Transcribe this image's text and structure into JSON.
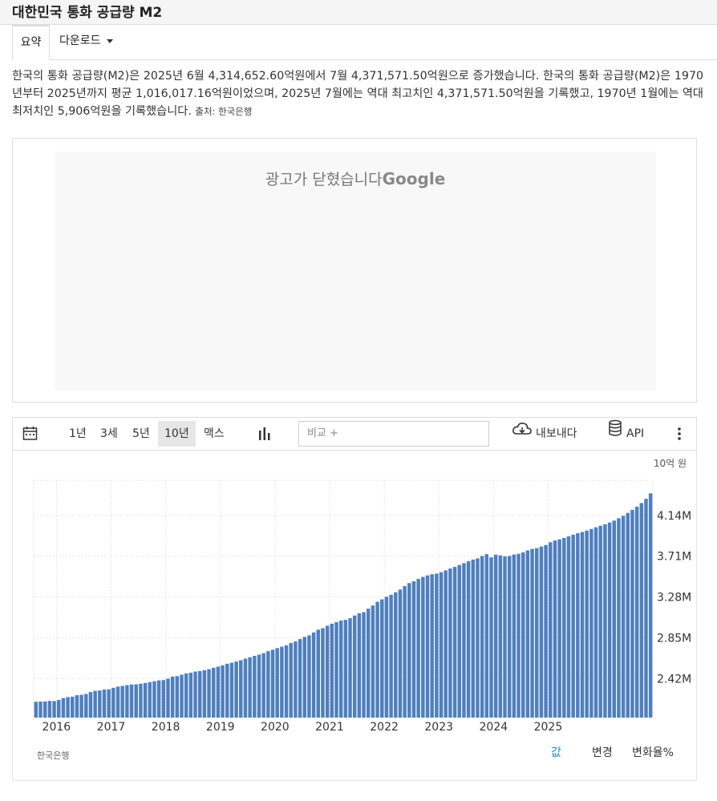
{
  "page": {
    "title": "대한민국 통화 공급량 M2",
    "tabs": [
      {
        "label": "요약"
      },
      {
        "label": "다운로드"
      }
    ],
    "description": "한국의 통화 공급량(M2)은 2025년 6월 4,314,652.60억원에서 7월 4,371,571.50억원으로 증가했습니다. 한국의 통화 공급량(M2)은 1970년부터 2025년까지 평균 1,016,017.16억원이었으며, 2025년 7월에는 역대 최고치인 4,371,571.50억원을 기록했고, 1970년 1월에는 역대 최저치인 5,906억원을 기록했습니다.",
    "source_prefix": "출처:",
    "source_name": "한국은행"
  },
  "ad": {
    "text": "광고가 닫혔습니다",
    "brand": "Google"
  },
  "toolbar": {
    "periods": [
      "1년",
      "3세",
      "5년",
      "10년",
      "맥스"
    ],
    "selected_period": "10년",
    "compare_placeholder": "비교 +",
    "export_label": "내보내다",
    "api_label": "API",
    "icons": [
      "calendar-icon",
      "bar-chart-icon",
      "cloud-download-icon",
      "database-icon",
      "more-vert-icon"
    ]
  },
  "chart_footer": {
    "source": "한국은행",
    "modes": [
      "값",
      "변경",
      "변화율%"
    ],
    "selected_mode": "값",
    "selected_color": "#1b8ed1"
  },
  "chart_data": {
    "type": "bar",
    "unit_label": "10억 원",
    "bar_color": "#4f7fbe",
    "grid": true,
    "x_tick_labels": [
      "2016",
      "2017",
      "2018",
      "2019",
      "2020",
      "2021",
      "2022",
      "2023",
      "2024",
      "2025"
    ],
    "y_tick_labels": [
      "2.42M",
      "2.85M",
      "3.28M",
      "3.71M",
      "4.14M"
    ],
    "y_ticks": [
      2420,
      2850,
      3280,
      3710,
      4140
    ],
    "ylim": [
      2010,
      4510
    ],
    "xlim": [
      "2015-08",
      "2025-07"
    ],
    "start_month": "2015-08",
    "values": [
      2177,
      2179,
      2180,
      2186,
      2184,
      2196,
      2216,
      2226,
      2230,
      2246,
      2250,
      2259,
      2279,
      2292,
      2296,
      2306,
      2308,
      2324,
      2337,
      2344,
      2352,
      2359,
      2360,
      2367,
      2375,
      2384,
      2393,
      2402,
      2405,
      2420,
      2442,
      2447,
      2462,
      2476,
      2483,
      2495,
      2500,
      2510,
      2520,
      2535,
      2547,
      2560,
      2577,
      2588,
      2601,
      2615,
      2632,
      2646,
      2660,
      2673,
      2689,
      2710,
      2725,
      2742,
      2757,
      2772,
      2796,
      2812,
      2837,
      2860,
      2876,
      2907,
      2936,
      2952,
      2978,
      2999,
      3016,
      3033,
      3040,
      3057,
      3085,
      3109,
      3121,
      3158,
      3191,
      3230,
      3255,
      3283,
      3304,
      3330,
      3359,
      3395,
      3427,
      3446,
      3471,
      3492,
      3508,
      3520,
      3527,
      3542,
      3561,
      3580,
      3597,
      3618,
      3637,
      3657,
      3675,
      3687,
      3713,
      3732,
      3698,
      3726,
      3719,
      3708,
      3713,
      3728,
      3735,
      3750,
      3771,
      3787,
      3795,
      3812,
      3828,
      3857,
      3876,
      3888,
      3903,
      3920,
      3937,
      3952,
      3965,
      3980,
      3997,
      4015,
      4031,
      4047,
      4065,
      4085,
      4110,
      4136,
      4166,
      4199,
      4232,
      4270,
      4315,
      4372
    ]
  }
}
